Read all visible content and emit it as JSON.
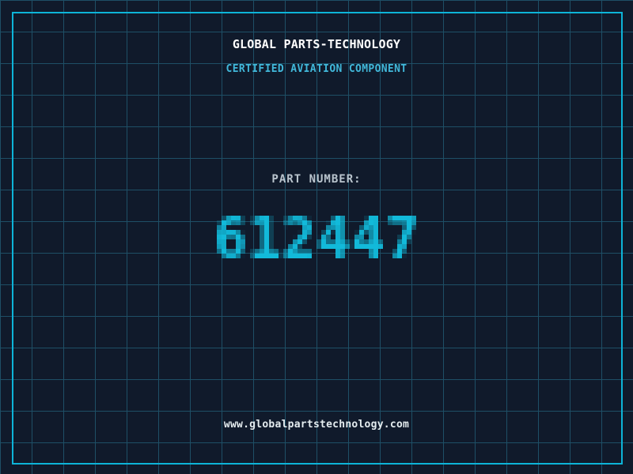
{
  "header": {
    "title": "GLOBAL PARTS-TECHNOLOGY",
    "subtitle": "CERTIFIED AVIATION COMPONENT"
  },
  "part": {
    "label": "PART NUMBER:",
    "number": "612447"
  },
  "footer": {
    "url": "www.globalpartstechnology.com"
  },
  "colors": {
    "background": "#101a2b",
    "grid_line": "#1e4f66",
    "border_accent": "#0db4d8",
    "part_number_cyan": "#12bada",
    "subtitle_cyan": "#41b8da",
    "label_gray": "#b9c4cd",
    "footer_light": "#e4ecef",
    "title_white": "#ffffff"
  }
}
